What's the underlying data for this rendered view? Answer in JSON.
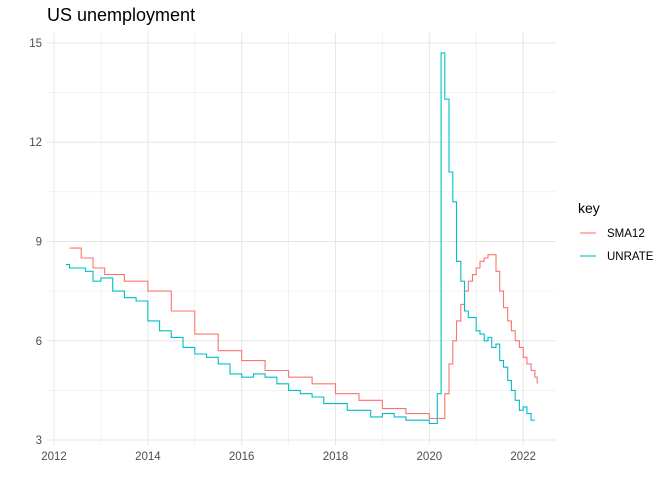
{
  "chart_data": {
    "type": "line",
    "title": "US unemployment",
    "xlabel": "",
    "ylabel": "",
    "xlim": [
      2011.85,
      2022.7
    ],
    "ylim": [
      2.85,
      15.3
    ],
    "x_ticks": [
      2012,
      2014,
      2016,
      2018,
      2020,
      2022
    ],
    "y_ticks": [
      3,
      6,
      9,
      12,
      15
    ],
    "x_minor_ticks": [
      2013,
      2015,
      2017,
      2019,
      2021
    ],
    "y_minor_ticks": [
      4.5,
      7.5,
      10.5,
      13.5
    ],
    "grid": true,
    "step": true,
    "legend": {
      "title": "key",
      "position": "right"
    },
    "series": [
      {
        "name": "SMA12",
        "color": "#F8766D",
        "points": [
          [
            2012.33,
            8.8
          ],
          [
            2012.58,
            8.5
          ],
          [
            2012.83,
            8.2
          ],
          [
            2013.08,
            8.0
          ],
          [
            2013.5,
            7.8
          ],
          [
            2014.0,
            7.5
          ],
          [
            2014.5,
            6.9
          ],
          [
            2015.0,
            6.2
          ],
          [
            2015.5,
            5.7
          ],
          [
            2016.0,
            5.4
          ],
          [
            2016.5,
            5.1
          ],
          [
            2017.0,
            4.9
          ],
          [
            2017.5,
            4.7
          ],
          [
            2018.0,
            4.4
          ],
          [
            2018.5,
            4.2
          ],
          [
            2019.0,
            3.95
          ],
          [
            2019.5,
            3.8
          ],
          [
            2020.0,
            3.65
          ],
          [
            2020.25,
            3.65
          ],
          [
            2020.33,
            4.4
          ],
          [
            2020.42,
            5.3
          ],
          [
            2020.5,
            6.0
          ],
          [
            2020.58,
            6.6
          ],
          [
            2020.67,
            7.1
          ],
          [
            2020.75,
            7.5
          ],
          [
            2020.83,
            7.8
          ],
          [
            2020.92,
            8.0
          ],
          [
            2021.0,
            8.2
          ],
          [
            2021.08,
            8.4
          ],
          [
            2021.17,
            8.5
          ],
          [
            2021.25,
            8.6
          ],
          [
            2021.33,
            8.6
          ],
          [
            2021.42,
            8.1
          ],
          [
            2021.5,
            7.5
          ],
          [
            2021.58,
            7.0
          ],
          [
            2021.67,
            6.6
          ],
          [
            2021.75,
            6.3
          ],
          [
            2021.83,
            6.0
          ],
          [
            2021.92,
            5.8
          ],
          [
            2022.0,
            5.5
          ],
          [
            2022.08,
            5.3
          ],
          [
            2022.17,
            5.1
          ],
          [
            2022.25,
            4.9
          ],
          [
            2022.3,
            4.7
          ]
        ]
      },
      {
        "name": "UNRATE",
        "color": "#00BFC4",
        "points": [
          [
            2012.25,
            8.3
          ],
          [
            2012.33,
            8.2
          ],
          [
            2012.5,
            8.2
          ],
          [
            2012.67,
            8.1
          ],
          [
            2012.83,
            7.8
          ],
          [
            2013.0,
            7.9
          ],
          [
            2013.25,
            7.5
          ],
          [
            2013.5,
            7.3
          ],
          [
            2013.75,
            7.2
          ],
          [
            2014.0,
            6.6
          ],
          [
            2014.25,
            6.3
          ],
          [
            2014.5,
            6.1
          ],
          [
            2014.75,
            5.8
          ],
          [
            2015.0,
            5.6
          ],
          [
            2015.25,
            5.5
          ],
          [
            2015.5,
            5.3
          ],
          [
            2015.75,
            5.0
          ],
          [
            2016.0,
            4.9
          ],
          [
            2016.25,
            5.0
          ],
          [
            2016.5,
            4.9
          ],
          [
            2016.75,
            4.7
          ],
          [
            2017.0,
            4.5
          ],
          [
            2017.25,
            4.4
          ],
          [
            2017.5,
            4.3
          ],
          [
            2017.75,
            4.1
          ],
          [
            2018.0,
            4.1
          ],
          [
            2018.25,
            3.9
          ],
          [
            2018.5,
            3.9
          ],
          [
            2018.75,
            3.7
          ],
          [
            2019.0,
            3.8
          ],
          [
            2019.25,
            3.7
          ],
          [
            2019.5,
            3.6
          ],
          [
            2019.75,
            3.6
          ],
          [
            2020.0,
            3.5
          ],
          [
            2020.17,
            4.4
          ],
          [
            2020.25,
            14.7
          ],
          [
            2020.33,
            13.3
          ],
          [
            2020.42,
            11.1
          ],
          [
            2020.5,
            10.2
          ],
          [
            2020.58,
            8.4
          ],
          [
            2020.67,
            7.8
          ],
          [
            2020.75,
            6.9
          ],
          [
            2020.83,
            6.7
          ],
          [
            2020.92,
            6.7
          ],
          [
            2021.0,
            6.3
          ],
          [
            2021.08,
            6.2
          ],
          [
            2021.17,
            6.0
          ],
          [
            2021.25,
            6.1
          ],
          [
            2021.33,
            5.8
          ],
          [
            2021.42,
            5.9
          ],
          [
            2021.5,
            5.4
          ],
          [
            2021.58,
            5.2
          ],
          [
            2021.67,
            4.8
          ],
          [
            2021.75,
            4.5
          ],
          [
            2021.83,
            4.2
          ],
          [
            2021.92,
            3.9
          ],
          [
            2022.0,
            4.0
          ],
          [
            2022.08,
            3.8
          ],
          [
            2022.17,
            3.6
          ],
          [
            2022.25,
            3.6
          ]
        ]
      }
    ]
  }
}
